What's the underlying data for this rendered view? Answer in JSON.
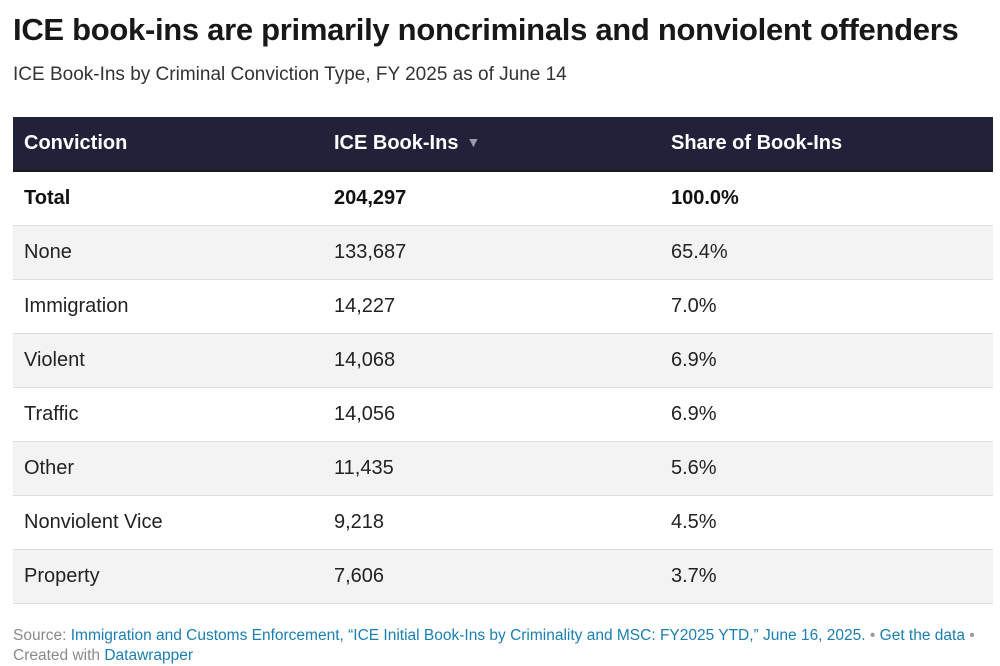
{
  "header": {
    "title": "ICE book-ins are primarily noncriminals and nonviolent offenders",
    "subtitle": "ICE Book-Ins by Criminal Conviction Type, FY 2025 as of June 14"
  },
  "table": {
    "columns": [
      "Conviction",
      "ICE Book-Ins",
      "Share of Book-Ins"
    ],
    "sort_icon": "sort-descending-icon",
    "sort_glyph": "▼",
    "rows": [
      {
        "conviction": "Total",
        "book_ins": "204,297",
        "share": "100.0%"
      },
      {
        "conviction": "None",
        "book_ins": "133,687",
        "share": "65.4%"
      },
      {
        "conviction": "Immigration",
        "book_ins": "14,227",
        "share": "7.0%"
      },
      {
        "conviction": "Violent",
        "book_ins": "14,068",
        "share": "6.9%"
      },
      {
        "conviction": "Traffic",
        "book_ins": "14,056",
        "share": "6.9%"
      },
      {
        "conviction": "Other",
        "book_ins": "11,435",
        "share": "5.6%"
      },
      {
        "conviction": "Nonviolent Vice",
        "book_ins": "9,218",
        "share": "4.5%"
      },
      {
        "conviction": "Property",
        "book_ins": "7,606",
        "share": "3.7%"
      }
    ]
  },
  "chart_data": {
    "type": "table",
    "title": "ICE book-ins are primarily noncriminals and nonviolent offenders",
    "subtitle": "ICE Book-Ins by Criminal Conviction Type, FY 2025 as of June 14",
    "columns": [
      "Conviction",
      "ICE Book-Ins",
      "Share of Book-Ins"
    ],
    "sorted_by": "ICE Book-Ins",
    "sort_order": "descending",
    "categories": [
      "Total",
      "None",
      "Immigration",
      "Violent",
      "Traffic",
      "Other",
      "Nonviolent Vice",
      "Property"
    ],
    "series": [
      {
        "name": "ICE Book-Ins",
        "values": [
          204297,
          133687,
          14227,
          14068,
          14056,
          11435,
          9218,
          7606
        ]
      },
      {
        "name": "Share of Book-Ins",
        "values": [
          100.0,
          65.4,
          7.0,
          6.9,
          6.9,
          5.6,
          4.5,
          3.7
        ]
      }
    ]
  },
  "footer": {
    "source_label": "Source: ",
    "source_text": "Immigration and Customs Enforcement, “ICE Initial Book-Ins by Criminality and MSC: FY2025 YTD,” June 16, 2025.",
    "separator": " • ",
    "get_data_label": "Get the data",
    "credit_label": "Created with ",
    "credit_link": "Datawrapper"
  },
  "colors": {
    "header_bg": "#22213a",
    "header_text": "#ffffff",
    "row_shade": "#f3f3f3",
    "link": "#1a7fb0"
  }
}
